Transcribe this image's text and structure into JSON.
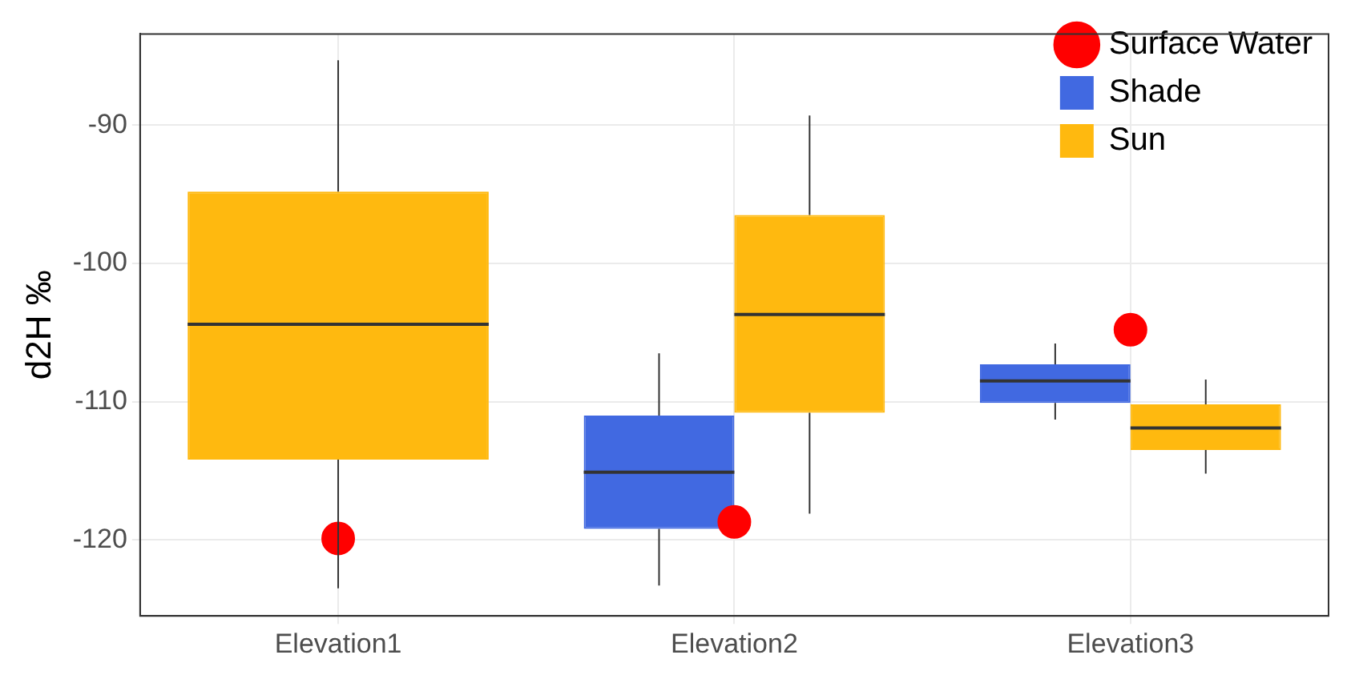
{
  "chart_data": {
    "type": "box",
    "ylabel": "d2H ‰",
    "categories": [
      "Elevation1",
      "Elevation2",
      "Elevation3"
    ],
    "ylim": [
      -125.5,
      -83.4
    ],
    "yticks": [
      -120,
      -110,
      -100,
      -90
    ],
    "grid": true,
    "legend": "top right",
    "marker": "circle",
    "series": [
      {
        "name": "Surface Water",
        "type": "scatter",
        "color": "#ff0000",
        "x": [
          "Elevation1",
          "Elevation2",
          "Elevation3"
        ],
        "values": [
          -119.9,
          -118.7,
          -104.8
        ]
      },
      {
        "name": "Shade",
        "type": "box",
        "color": "#4169e1",
        "boxes": [
          null,
          {
            "low": -123.3,
            "q1": -119.2,
            "median": -115.1,
            "q3": -111.0,
            "high": -106.5
          },
          {
            "low": -111.3,
            "q1": -110.1,
            "median": -108.5,
            "q3": -107.3,
            "high": -105.8
          }
        ]
      },
      {
        "name": "Sun",
        "type": "box",
        "color": "#ffb90f",
        "boxes": [
          {
            "low": -123.5,
            "q1": -114.2,
            "median": -104.4,
            "q3": -94.8,
            "high": -85.3
          },
          {
            "low": -118.1,
            "q1": -110.8,
            "median": -103.7,
            "q3": -96.5,
            "high": -89.3
          },
          {
            "low": -115.2,
            "q1": -113.5,
            "median": -111.9,
            "q3": -110.2,
            "high": -108.4
          }
        ]
      }
    ]
  }
}
